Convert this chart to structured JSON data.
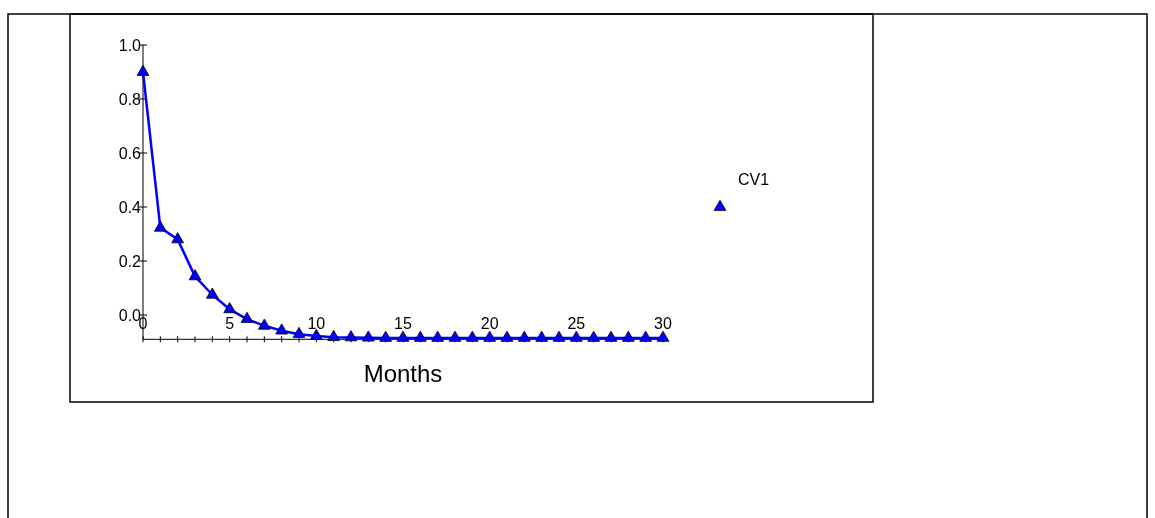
{
  "chart_data": {
    "type": "line",
    "xlabel": "Months",
    "x": [
      0,
      1,
      2,
      3,
      4,
      5,
      6,
      7,
      8,
      9,
      10,
      11,
      12,
      13,
      14,
      15,
      16,
      17,
      18,
      19,
      20,
      21,
      22,
      23,
      24,
      25,
      26,
      27,
      28,
      29,
      30
    ],
    "series": [
      {
        "name": "CV1",
        "color": "#0000ff",
        "values": [
          0.9,
          0.323,
          0.28,
          0.143,
          0.075,
          0.021,
          -0.015,
          -0.04,
          -0.058,
          -0.071,
          -0.078,
          -0.082,
          -0.083,
          -0.084,
          -0.085,
          -0.085,
          -0.085,
          -0.085,
          -0.085,
          -0.085,
          -0.085,
          -0.085,
          -0.085,
          -0.085,
          -0.085,
          -0.085,
          -0.085,
          -0.085,
          -0.085,
          -0.085,
          -0.085
        ]
      }
    ],
    "xlim": [
      0,
      30
    ],
    "xticks": [
      0,
      5,
      10,
      15,
      20,
      25,
      30
    ],
    "ylim": [
      -0.09,
      1.0
    ],
    "yticks": [
      {
        "value": 0,
        "label": "0.0"
      },
      0.2,
      0.4,
      0.6,
      0.8,
      {
        "value": 1,
        "label": "1.0"
      }
    ],
    "marker": "triangle",
    "line_style": "solid",
    "legend": "right",
    "grid": false
  }
}
